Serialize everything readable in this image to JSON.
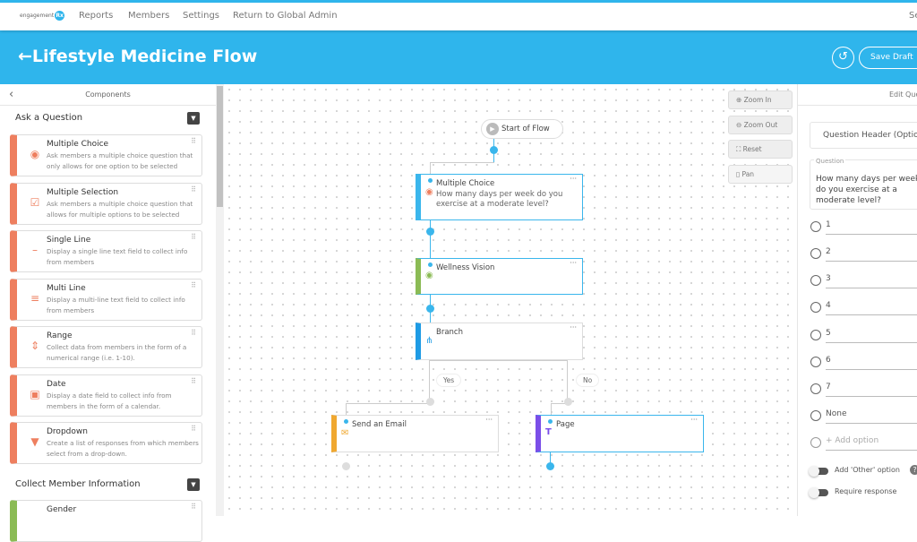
{
  "nav": {
    "logo_text": "engagement",
    "logo_badge": "Rx",
    "items": [
      "Reports",
      "Members",
      "Settings",
      "Return to Global Admin"
    ],
    "right_text": "Se"
  },
  "header": {
    "title": "Lifestyle Medicine Flow",
    "save_label": "Save Draft",
    "accent": "#2fb5ec"
  },
  "components": {
    "title": "Components",
    "sections": [
      {
        "title": "Ask a Question",
        "items": [
          {
            "title": "Multiple Choice",
            "desc": "Ask members a multiple choice question that only allows for one option to be selected",
            "icon": "radio-icon"
          },
          {
            "title": "Multiple Selection",
            "desc": "Ask members a multiple choice question that allows for multiple options to be selected",
            "icon": "checkbox-icon"
          },
          {
            "title": "Single Line",
            "desc": "Display a single line text field to collect info from members",
            "icon": "dash-icon"
          },
          {
            "title": "Multi Line",
            "desc": "Display a multi-line text field to collect info from members",
            "icon": "lines-icon"
          },
          {
            "title": "Range",
            "desc": "Collect data from members in the form of a numerical range (i.e. 1-10).",
            "icon": "range-icon"
          },
          {
            "title": "Date",
            "desc": "Display a date field to collect info from members in the form of a calendar.",
            "icon": "calendar-icon"
          },
          {
            "title": "Dropdown",
            "desc": "Create a list of responses from which members select from a drop-down.",
            "icon": "dropdown-icon"
          }
        ]
      },
      {
        "title": "Collect Member Information",
        "items": [
          {
            "title": "Gender"
          }
        ]
      }
    ]
  },
  "canvas": {
    "zoom_in": "Zoom In",
    "zoom_out": "Zoom Out",
    "reset": "Reset",
    "pan": "Pan",
    "start": "Start of Flow",
    "nodes": [
      {
        "title": "Multiple Choice",
        "desc": "How many days per week do you exercise at a moderate level?",
        "color": "#ee7f5f"
      },
      {
        "title": "Wellness Vision",
        "color": "#8bbb55"
      },
      {
        "title": "Branch",
        "color": "#1e9be5"
      },
      {
        "title": "Send an Email",
        "color": "#f0a830"
      },
      {
        "title": "Page",
        "color": "#7a4ee8"
      }
    ],
    "yes": "Yes",
    "no": "No"
  },
  "editor": {
    "title": "Edit Question",
    "header_placeholder": "Question Header (Optional)",
    "question_label": "Question",
    "question": "How many days per week do you exercise at a moderate level?",
    "options": [
      "1",
      "2",
      "3",
      "4",
      "5",
      "6",
      "7",
      "None"
    ],
    "add_option": "+ Add option",
    "other_toggle": "Add 'Other' option",
    "require_toggle": "Require response"
  }
}
